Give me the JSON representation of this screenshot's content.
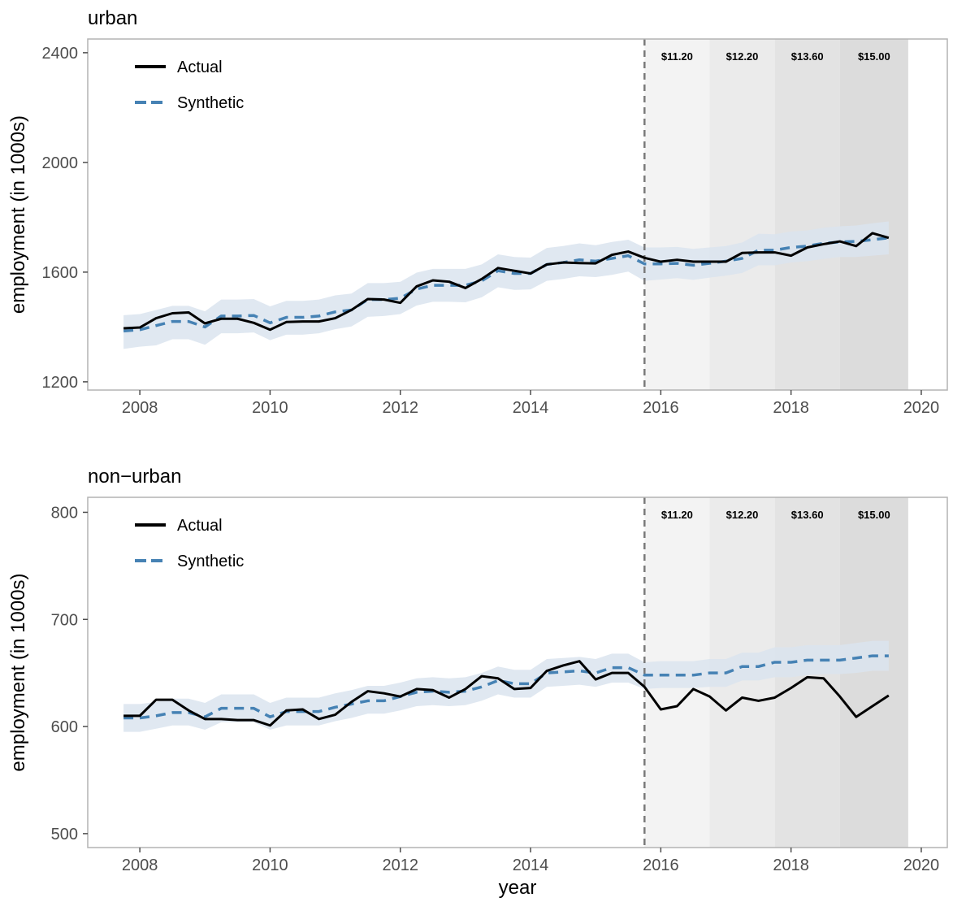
{
  "chart_data": {
    "type": "line",
    "xlabel": "year",
    "ylabel": "employment (in 1000s)",
    "x_ticks": [
      2008,
      2010,
      2012,
      2014,
      2016,
      2018,
      2020
    ],
    "xlim": [
      2007.2,
      2020.4
    ],
    "intervention_year": 2015.75,
    "wage_periods": [
      {
        "label": "$11.20",
        "start": 2015.75,
        "end": 2016.75,
        "shade": "#f3f3f3"
      },
      {
        "label": "$12.20",
        "start": 2016.75,
        "end": 2017.75,
        "shade": "#ebebeb"
      },
      {
        "label": "$13.60",
        "start": 2017.75,
        "end": 2018.75,
        "shade": "#e3e3e3"
      },
      {
        "label": "$15.00",
        "start": 2018.75,
        "end": 2019.8,
        "shade": "#dcdcdc"
      }
    ],
    "legend": [
      {
        "name": "Actual",
        "color": "#000000",
        "dash": "solid"
      },
      {
        "name": "Synthetic",
        "color": "#4682b4",
        "dash": "dashed"
      }
    ],
    "colors": {
      "actual": "#000000",
      "synthetic": "#4682b4",
      "band": "#dae4ef",
      "intervention_line": "#7a7a7a"
    },
    "x": [
      2007.75,
      2008.0,
      2008.25,
      2008.5,
      2008.75,
      2009.0,
      2009.25,
      2009.5,
      2009.75,
      2010.0,
      2010.25,
      2010.5,
      2010.75,
      2011.0,
      2011.25,
      2011.5,
      2011.75,
      2012.0,
      2012.25,
      2012.5,
      2012.75,
      2013.0,
      2013.25,
      2013.5,
      2013.75,
      2014.0,
      2014.25,
      2014.5,
      2014.75,
      2015.0,
      2015.25,
      2015.5,
      2015.75,
      2016.0,
      2016.25,
      2016.5,
      2016.75,
      2017.0,
      2017.25,
      2017.5,
      2017.75,
      2018.0,
      2018.25,
      2018.5,
      2018.75,
      2019.0,
      2019.25,
      2019.5
    ],
    "panels": [
      {
        "title": "urban",
        "ylim": [
          1170,
          2450
        ],
        "y_ticks": [
          1200,
          1600,
          2000,
          2400
        ],
        "series": [
          {
            "name": "Actual",
            "values": [
              1395,
              1398,
              1432,
              1450,
              1453,
              1413,
              1430,
              1430,
              1415,
              1390,
              1418,
              1420,
              1420,
              1432,
              1462,
              1502,
              1500,
              1488,
              1548,
              1570,
              1565,
              1542,
              1575,
              1615,
              1605,
              1595,
              1628,
              1635,
              1633,
              1632,
              1663,
              1675,
              1652,
              1638,
              1645,
              1638,
              1638,
              1638,
              1670,
              1672,
              1672,
              1660,
              1690,
              1702,
              1712,
              1695,
              1742,
              1725
            ]
          },
          {
            "name": "Synthetic",
            "values": [
              1385,
              1390,
              1405,
              1420,
              1420,
              1400,
              1440,
              1440,
              1442,
              1415,
              1435,
              1435,
              1440,
              1455,
              1462,
              1500,
              1500,
              1505,
              1538,
              1552,
              1552,
              1552,
              1568,
              1605,
              1595,
              1595,
              1628,
              1635,
              1645,
              1640,
              1650,
              1660,
              1630,
              1630,
              1632,
              1625,
              1632,
              1640,
              1650,
              1680,
              1680,
              1690,
              1695,
              1705,
              1710,
              1712,
              1718,
              1725
            ]
          }
        ],
        "band_lower": [
          1320,
          1328,
          1333,
          1355,
          1355,
          1335,
          1377,
          1377,
          1380,
          1352,
          1372,
          1372,
          1377,
          1392,
          1402,
          1437,
          1440,
          1447,
          1478,
          1492,
          1492,
          1490,
          1508,
          1545,
          1535,
          1537,
          1568,
          1575,
          1585,
          1582,
          1590,
          1602,
          1568,
          1573,
          1578,
          1572,
          1580,
          1587,
          1597,
          1625,
          1625,
          1635,
          1640,
          1648,
          1655,
          1655,
          1660,
          1665
        ],
        "band_upper": [
          1443,
          1447,
          1462,
          1477,
          1477,
          1457,
          1500,
          1500,
          1502,
          1475,
          1495,
          1495,
          1500,
          1515,
          1522,
          1560,
          1560,
          1565,
          1598,
          1612,
          1612,
          1612,
          1628,
          1665,
          1655,
          1653,
          1688,
          1695,
          1705,
          1698,
          1710,
          1718,
          1690,
          1690,
          1692,
          1685,
          1690,
          1695,
          1708,
          1740,
          1738,
          1748,
          1752,
          1762,
          1767,
          1770,
          1778,
          1785
        ]
      },
      {
        "title": "non−urban",
        "ylim": [
          487,
          814
        ],
        "y_ticks": [
          500,
          600,
          700,
          800
        ],
        "series": [
          {
            "name": "Actual",
            "values": [
              610,
              610,
              625,
              625,
              615,
              607,
              607,
              606,
              606,
              601,
              615,
              616,
              607,
              611,
              623,
              633,
              631,
              628,
              635,
              634,
              627,
              635,
              647,
              645,
              635,
              636,
              652,
              657,
              661,
              644,
              650,
              650,
              637,
              616,
              619,
              635,
              628,
              615,
              627,
              624,
              627,
              636,
              646,
              645,
              628,
              609,
              619,
              629
            ]
          },
          {
            "name": "Synthetic",
            "values": [
              608,
              608,
              610,
              613,
              613,
              609,
              617,
              617,
              617,
              609,
              614,
              614,
              614,
              618,
              621,
              624,
              624,
              628,
              632,
              633,
              632,
              633,
              637,
              643,
              640,
              640,
              650,
              651,
              652,
              650,
              655,
              655,
              648,
              648,
              648,
              648,
              650,
              650,
              656,
              656,
              660,
              660,
              662,
              662,
              662,
              664,
              666,
              666
            ]
          }
        ],
        "band_lower": [
          595,
          595,
          598,
          601,
          601,
          597,
          604,
          604,
          604,
          597,
          601,
          601,
          601,
          605,
          608,
          612,
          612,
          615,
          619,
          620,
          619,
          620,
          624,
          630,
          627,
          627,
          637,
          638,
          639,
          637,
          641,
          641,
          635,
          636,
          636,
          636,
          637,
          637,
          643,
          643,
          646,
          646,
          648,
          649,
          649,
          650,
          652,
          652
        ],
        "band_upper": [
          621,
          621,
          623,
          626,
          626,
          622,
          630,
          630,
          630,
          622,
          627,
          627,
          627,
          631,
          634,
          638,
          638,
          641,
          645,
          646,
          645,
          646,
          650,
          656,
          653,
          653,
          663,
          664,
          665,
          663,
          668,
          668,
          660,
          661,
          661,
          661,
          663,
          663,
          669,
          669,
          674,
          674,
          676,
          676,
          676,
          678,
          680,
          680
        ]
      }
    ]
  }
}
